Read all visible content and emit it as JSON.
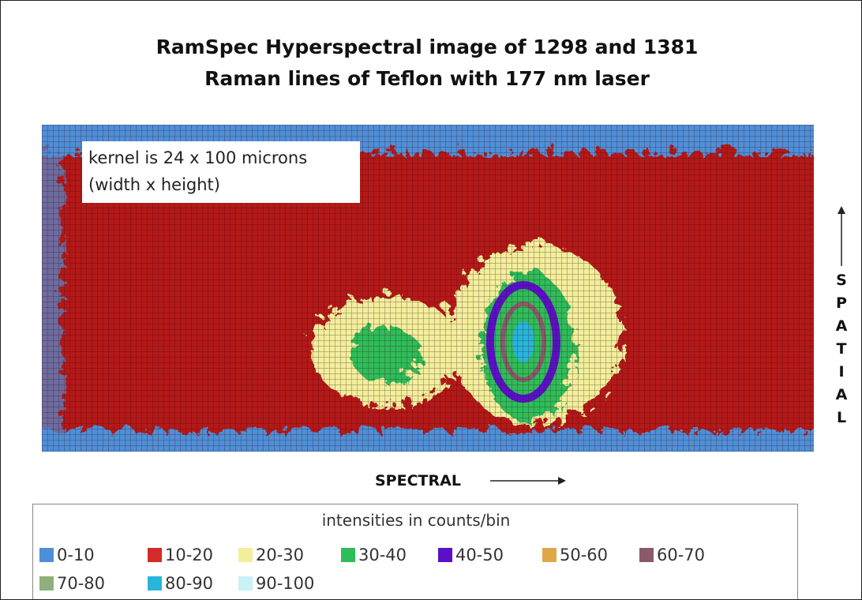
{
  "title_line1": "RamSpec Hyperspectral image of 1298 and 1381",
  "title_line2": "Raman lines of Teflon with 177 nm laser",
  "note_line1": "kernel is 24 x 100 microns",
  "note_line2": "(width x height)",
  "x_axis_label": "SPECTRAL",
  "y_axis_label": "SPATIAL",
  "legend": {
    "title": "intensities in counts/bin",
    "items": [
      {
        "label": "0-10",
        "color": "#4f8fd8"
      },
      {
        "label": "10-20",
        "color": "#d42a2a"
      },
      {
        "label": "20-30",
        "color": "#f2ef9c"
      },
      {
        "label": "30-40",
        "color": "#2ebd5a"
      },
      {
        "label": "40-50",
        "color": "#5a10c8"
      },
      {
        "label": "50-60",
        "color": "#e0a64a"
      },
      {
        "label": "60-70",
        "color": "#8a5a6a"
      },
      {
        "label": "70-80",
        "color": "#8fb07a"
      },
      {
        "label": "80-90",
        "color": "#27b5dc"
      },
      {
        "label": "90-100",
        "color": "#c8f2f5"
      }
    ]
  }
}
